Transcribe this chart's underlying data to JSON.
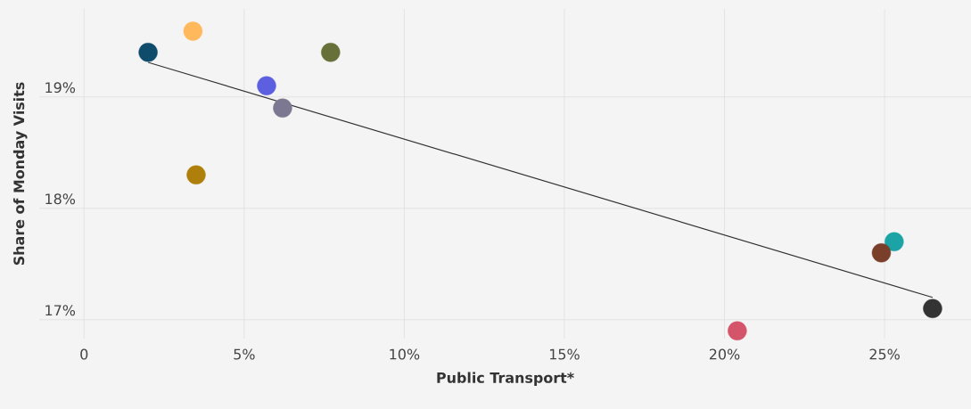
{
  "chart_data": {
    "type": "scatter",
    "xlabel": "Public Transport*",
    "ylabel": "Share of Monday Visits",
    "xlim": [
      -1.4,
      27.7
    ],
    "ylim": [
      16.83,
      19.79
    ],
    "xticks": [
      {
        "value": 0,
        "label": "0"
      },
      {
        "value": 5,
        "label": "5%"
      },
      {
        "value": 10,
        "label": "10%"
      },
      {
        "value": 15,
        "label": "15%"
      },
      {
        "value": 20,
        "label": "20%"
      },
      {
        "value": 25,
        "label": "25%"
      }
    ],
    "yticks": [
      {
        "value": 17,
        "label": "17%"
      },
      {
        "value": 18,
        "label": "18%"
      },
      {
        "value": 19,
        "label": "19%"
      }
    ],
    "grid": true,
    "marker": "circle",
    "series": [
      {
        "x": [
          2.0,
          3.4,
          7.7,
          5.7,
          6.2,
          3.5,
          25.3,
          24.9,
          26.5,
          20.4
        ],
        "values": [
          19.4,
          19.59,
          19.4,
          19.1,
          18.9,
          18.3,
          17.7,
          17.6,
          17.1,
          16.9
        ],
        "colors": [
          "#0f4c6b",
          "#ffb85c",
          "#687039",
          "#5b5fe0",
          "#7d7891",
          "#ae7f0a",
          "#1ba3a6",
          "#7a3f2b",
          "#333333",
          "#d4546a"
        ]
      },
      {
        "type": "line",
        "x": [
          2.0,
          26.5
        ],
        "values": [
          19.31,
          17.2
        ],
        "color": "#333333",
        "marker": "none"
      }
    ]
  }
}
